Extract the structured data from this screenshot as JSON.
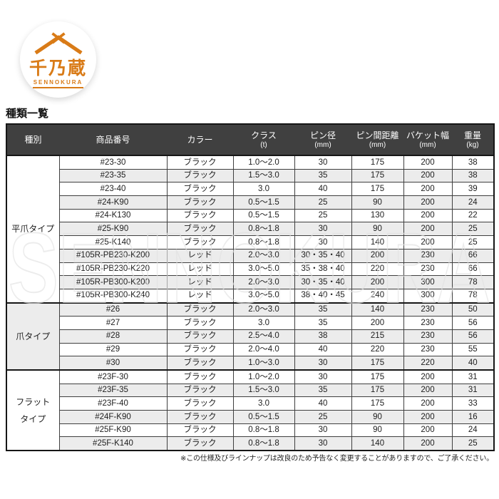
{
  "logo": {
    "brand_jp": "千乃蔵",
    "brand_en": "SENNOKURA",
    "brand_color": "#d97b17"
  },
  "page": {
    "title": "種類一覧",
    "watermark": "SENNOKURA",
    "footnote": "※この仕様及びラインナップは改良のため予告なく変更することがありますので、ご了承ください。"
  },
  "colors": {
    "header_bg": "#404040",
    "row_alt_bg": "#ececec",
    "border_dark": "#161616"
  },
  "table": {
    "headers": [
      {
        "label": "種別",
        "unit": ""
      },
      {
        "label": "商品番号",
        "unit": ""
      },
      {
        "label": "カラー",
        "unit": ""
      },
      {
        "label": "クラス",
        "unit": "(t)"
      },
      {
        "label": "ピン径",
        "unit": "(mm)"
      },
      {
        "label": "ピン間距離",
        "unit": "(mm)"
      },
      {
        "label": "バケット幅",
        "unit": "(mm)"
      },
      {
        "label": "重量",
        "unit": "(kg)"
      }
    ],
    "groups": [
      {
        "type": "平爪タイプ",
        "rows": [
          [
            "#23-30",
            "ブラック",
            "1.0〜2.0",
            "30",
            "175",
            "200",
            "38"
          ],
          [
            "#23-35",
            "ブラック",
            "1.5〜3.0",
            "35",
            "175",
            "200",
            "38"
          ],
          [
            "#23-40",
            "ブラック",
            "3.0",
            "40",
            "175",
            "200",
            "39"
          ],
          [
            "#24-K90",
            "ブラック",
            "0.5〜1.5",
            "25",
            "90",
            "200",
            "24"
          ],
          [
            "#24-K130",
            "ブラック",
            "0.5〜1.5",
            "25",
            "130",
            "200",
            "22"
          ],
          [
            "#25-K90",
            "ブラック",
            "0.8〜1.8",
            "30",
            "90",
            "200",
            "25"
          ],
          [
            "#25-K140",
            "ブラック",
            "0.8〜1.8",
            "30",
            "140",
            "200",
            "25"
          ],
          [
            "#105R-PB230-K200",
            "レッド",
            "2.0〜3.0",
            "30・35・40",
            "200",
            "230",
            "66"
          ],
          [
            "#105R-PB230-K220",
            "レッド",
            "3.0〜5.0",
            "35・38・40",
            "220",
            "230",
            "66"
          ],
          [
            "#105R-PB300-K200",
            "レッド",
            "2.0〜3.0",
            "30・35・40",
            "200",
            "300",
            "78"
          ],
          [
            "#105R-PB300-K240",
            "レッド",
            "3.0〜5.0",
            "38・40・45",
            "240",
            "300",
            "78"
          ]
        ]
      },
      {
        "type": "爪タイプ",
        "rows": [
          [
            "#26",
            "ブラック",
            "2.0〜3.0",
            "35",
            "140",
            "230",
            "50"
          ],
          [
            "#27",
            "ブラック",
            "3.0",
            "35",
            "200",
            "230",
            "56"
          ],
          [
            "#28",
            "ブラック",
            "2.5〜4.0",
            "38",
            "215",
            "230",
            "56"
          ],
          [
            "#29",
            "ブラック",
            "2.0〜4.0",
            "40",
            "220",
            "230",
            "55"
          ],
          [
            "#30",
            "ブラック",
            "1.0〜3.0",
            "30",
            "175",
            "220",
            "40"
          ]
        ]
      },
      {
        "type": "フラット\nタイプ",
        "rows": [
          [
            "#23F-30",
            "ブラック",
            "1.0〜2.0",
            "30",
            "175",
            "200",
            "31"
          ],
          [
            "#23F-35",
            "ブラック",
            "1.5〜3.0",
            "35",
            "175",
            "200",
            "31"
          ],
          [
            "#23F-40",
            "ブラック",
            "3.0",
            "40",
            "175",
            "200",
            "33"
          ],
          [
            "#24F-K90",
            "ブラック",
            "0.5〜1.5",
            "25",
            "90",
            "200",
            "16"
          ],
          [
            "#25F-K90",
            "ブラック",
            "0.8〜1.8",
            "30",
            "90",
            "200",
            "24"
          ],
          [
            "#25F-K140",
            "ブラック",
            "0.8〜1.8",
            "30",
            "140",
            "200",
            "25"
          ]
        ]
      }
    ]
  }
}
